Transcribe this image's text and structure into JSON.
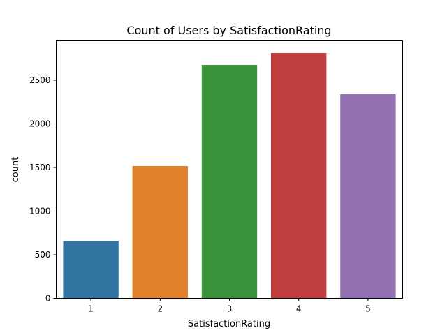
{
  "chart_data": {
    "type": "bar",
    "title": "Count of Users by SatisfactionRating",
    "xlabel": "SatisfactionRating",
    "ylabel": "count",
    "categories": [
      "1",
      "2",
      "3",
      "4",
      "5"
    ],
    "values": [
      657,
      1516,
      2676,
      2812,
      2340
    ],
    "colors": [
      "#3274a1",
      "#e1812c",
      "#3a923a",
      "#c03d3e",
      "#9372b2"
    ],
    "ylim": [
      0,
      2952
    ],
    "yticks": [
      0,
      500,
      1000,
      1500,
      2000,
      2500
    ],
    "grid": false,
    "legend": "none"
  }
}
